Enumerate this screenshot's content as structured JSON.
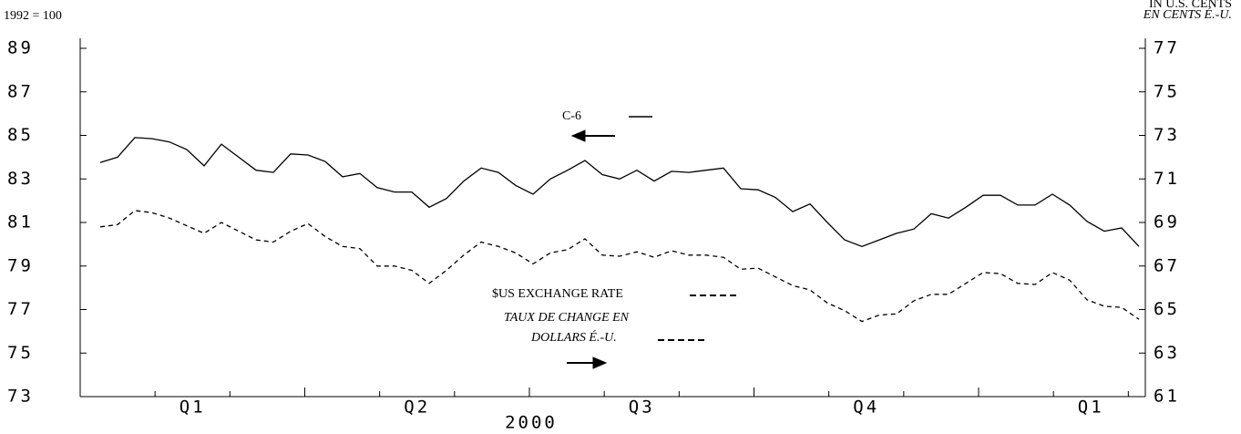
{
  "chart_data": {
    "type": "line",
    "left_note": "1992 = 100",
    "right_note": [
      "IN U.S. CENTS",
      "EN CENTS É.-U."
    ],
    "xlabel": "2000",
    "xtick_labels": [
      "Q1",
      "Q2",
      "Q3",
      "Q4",
      "Q1"
    ],
    "ylim": [
      73,
      89
    ],
    "yticks": [
      73,
      75,
      77,
      79,
      81,
      83,
      85,
      87,
      89
    ],
    "y2lim": [
      61,
      77
    ],
    "y2ticks": [
      61,
      63,
      65,
      67,
      69,
      71,
      73,
      75,
      77
    ],
    "series": [
      {
        "name": "C-6",
        "color": "#000000",
        "dash": false,
        "values": [
          83.75,
          84.0,
          84.9,
          84.85,
          84.7,
          84.35,
          83.6,
          84.6,
          84.0,
          83.4,
          83.3,
          84.15,
          84.1,
          83.8,
          83.1,
          83.25,
          82.6,
          82.4,
          82.4,
          81.7,
          82.1,
          82.9,
          83.5,
          83.3,
          82.7,
          82.3,
          83.0,
          83.4,
          83.85,
          83.2,
          83.0,
          83.4,
          82.9,
          83.35,
          83.3,
          83.4,
          83.5,
          82.55,
          82.5,
          82.15,
          81.5,
          81.85,
          81.0,
          80.2,
          79.9,
          80.2,
          80.5,
          80.7,
          81.4,
          81.2,
          81.7,
          82.25,
          82.25,
          81.8,
          81.8,
          82.3,
          81.8,
          81.05,
          80.6,
          80.75,
          79.9
        ]
      },
      {
        "name": "$US EXCHANGE RATE",
        "color": "#000000",
        "dash": true,
        "axis": "y2",
        "values": [
          68.8,
          68.9,
          69.55,
          69.45,
          69.2,
          68.85,
          68.5,
          69.0,
          68.6,
          68.2,
          68.1,
          68.6,
          68.95,
          68.35,
          67.9,
          67.8,
          67.0,
          67.0,
          66.8,
          66.2,
          66.8,
          67.5,
          68.1,
          67.9,
          67.6,
          67.1,
          67.6,
          67.75,
          68.25,
          67.5,
          67.45,
          67.65,
          67.4,
          67.7,
          67.5,
          67.5,
          67.4,
          66.85,
          66.9,
          66.5,
          66.1,
          65.9,
          65.3,
          64.95,
          64.45,
          64.75,
          64.8,
          65.4,
          65.7,
          65.7,
          66.2,
          66.7,
          66.65,
          66.2,
          66.15,
          66.7,
          66.35,
          65.45,
          65.15,
          65.1,
          64.55
        ]
      }
    ],
    "annotations": [
      "TAUX DE CHANGE EN",
      "DOLLARS É.-U."
    ]
  }
}
